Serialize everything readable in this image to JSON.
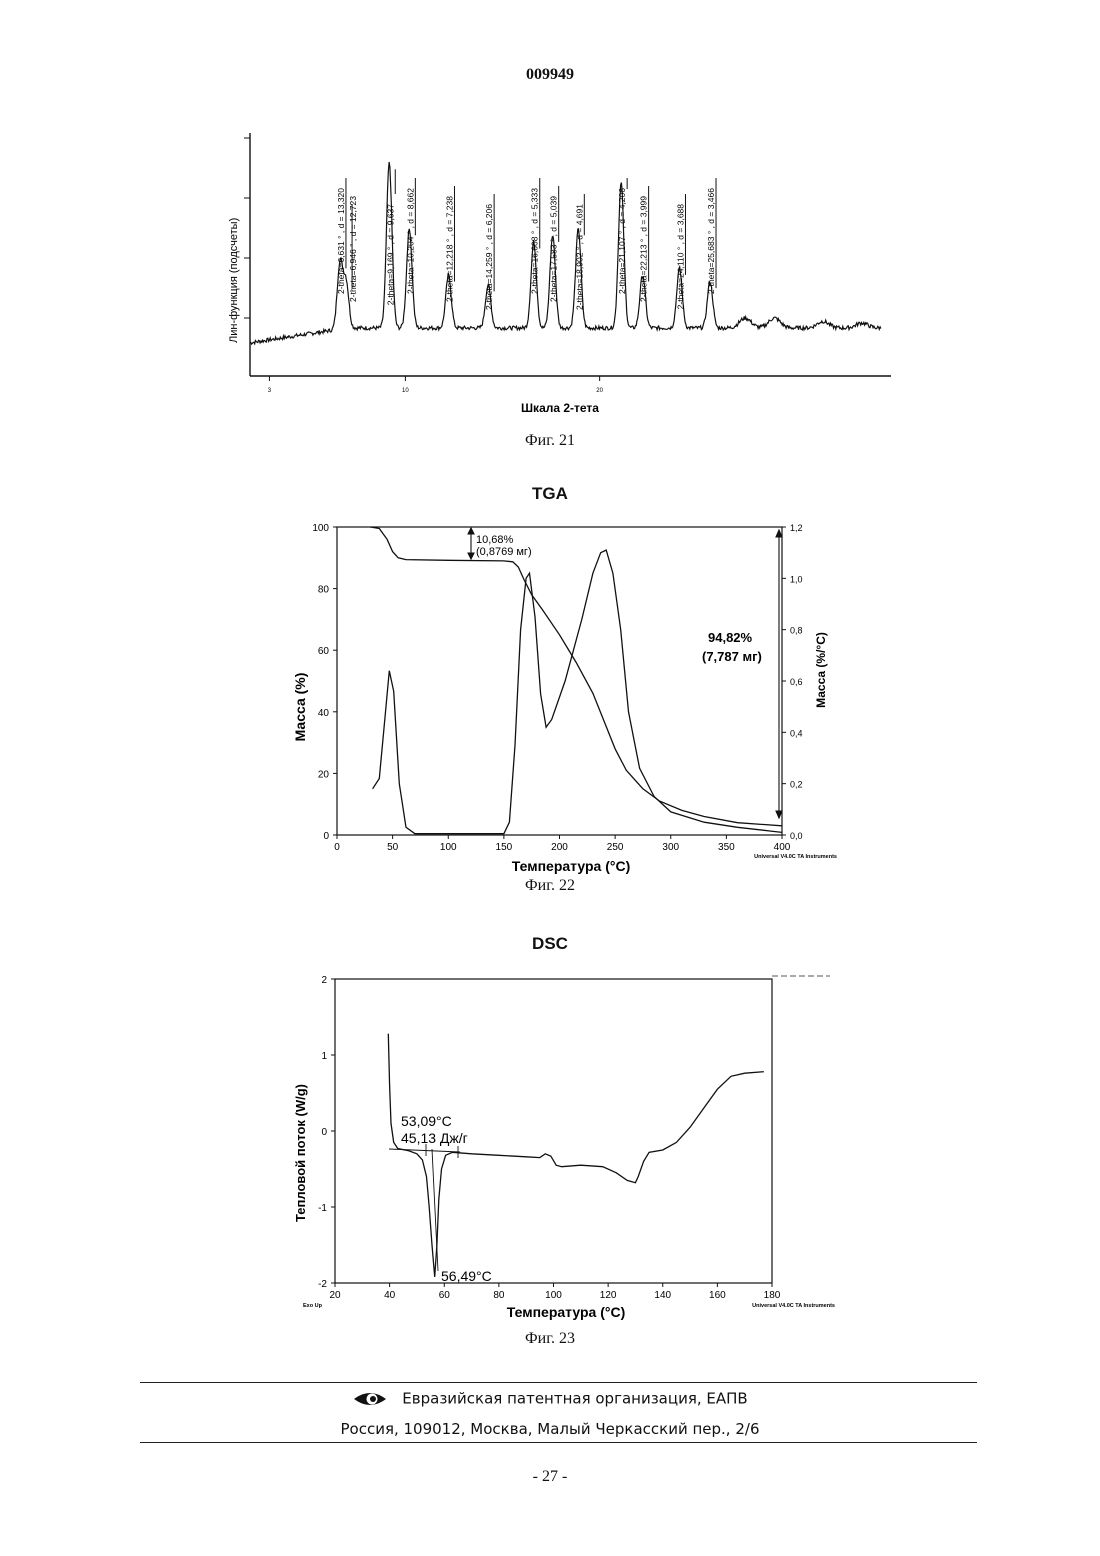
{
  "header": {
    "doc_number": "009949"
  },
  "figures": [
    {
      "caption": "Фиг. 21"
    },
    {
      "caption": "Фиг. 22"
    },
    {
      "caption": "Фиг. 23"
    }
  ],
  "chart_data": [
    {
      "type": "line",
      "title": "",
      "xlabel": "Шкала 2-тета",
      "ylabel": "Лин-функция (подсчеты)",
      "x_tick_labels": [
        "3",
        "10",
        "20"
      ],
      "xlim": [
        2,
        35
      ],
      "annotations": [
        "2-theta=6,631 ° , d = 13,320",
        "2-theta=6,946 ° , d = 12,723",
        "2-theta=9,169 ° , d = 9,637",
        "2-theta=10,204 ° , d = 8,662",
        "2-theta=12,218 ° , d = 7,238",
        "2-theta=14,259 ° , d = 6,206",
        "2-theta=16,608 ° , d = 5,333",
        "2-theta=17,583 ° , d = 5,039",
        "2-theta=18,902 ° , d = 4,691",
        "2-theta=21,107 ° , d = 4,206",
        "2-theta=22,213 ° , d = 3,999",
        "2-theta=24,110 ° , d = 3,688",
        "2-theta=25,683 ° , d = 3,466"
      ],
      "peaks_2theta": [
        6.631,
        6.946,
        9.169,
        10.204,
        12.218,
        14.259,
        16.608,
        17.583,
        18.902,
        21.107,
        22.213,
        24.11,
        25.683
      ],
      "peak_heights": [
        0.2,
        0.14,
        0.5,
        0.3,
        0.16,
        0.13,
        0.26,
        0.28,
        0.3,
        0.44,
        0.16,
        0.18,
        0.14
      ]
    },
    {
      "type": "line",
      "title": "TGA",
      "xlabel": "Температура (°C)",
      "ylabel": "Масса (%)",
      "ylabel_right": "Масса (%/°C)",
      "xlim": [
        0,
        400
      ],
      "ylim": [
        0,
        100
      ],
      "ylim_right": [
        0,
        1.2
      ],
      "x_ticks": [
        "0",
        "50",
        "100",
        "150",
        "200",
        "250",
        "300",
        "350",
        "400"
      ],
      "y_ticks": [
        "0",
        "20",
        "40",
        "60",
        "80",
        "100"
      ],
      "y_ticks_right": [
        "0,0",
        "0,2",
        "0,4",
        "0,6",
        "0,8",
        "1,0",
        "1,2"
      ],
      "footer_note": "Universal V4.0C TA Instruments",
      "annotations": [
        "10,68%",
        "(0,8769 мг)",
        "94,82%",
        "(7,787 мг)"
      ],
      "series": [
        {
          "name": "mass",
          "points": [
            [
              30,
              100
            ],
            [
              38,
              99.5
            ],
            [
              45,
              96
            ],
            [
              50,
              92
            ],
            [
              55,
              90
            ],
            [
              62,
              89.4
            ],
            [
              100,
              89.2
            ],
            [
              150,
              89
            ],
            [
              158,
              88.7
            ],
            [
              163,
              87
            ],
            [
              168,
              83
            ],
            [
              175,
              78
            ],
            [
              185,
              73
            ],
            [
              200,
              65
            ],
            [
              215,
              56
            ],
            [
              230,
              46
            ],
            [
              240,
              37
            ],
            [
              250,
              28
            ],
            [
              260,
              21
            ],
            [
              275,
              15
            ],
            [
              290,
              11
            ],
            [
              310,
              8
            ],
            [
              330,
              6
            ],
            [
              360,
              4
            ],
            [
              400,
              3
            ]
          ]
        },
        {
          "name": "derivative",
          "points": [
            [
              32,
              0.18
            ],
            [
              38,
              0.22
            ],
            [
              43,
              0.45
            ],
            [
              47,
              0.64
            ],
            [
              51,
              0.56
            ],
            [
              56,
              0.2
            ],
            [
              62,
              0.03
            ],
            [
              70,
              0.005
            ],
            [
              150,
              0.005
            ],
            [
              155,
              0.05
            ],
            [
              160,
              0.35
            ],
            [
              165,
              0.8
            ],
            [
              170,
              1.0
            ],
            [
              173,
              1.02
            ],
            [
              178,
              0.85
            ],
            [
              183,
              0.55
            ],
            [
              188,
              0.42
            ],
            [
              193,
              0.45
            ],
            [
              205,
              0.6
            ],
            [
              220,
              0.84
            ],
            [
              230,
              1.02
            ],
            [
              237,
              1.1
            ],
            [
              242,
              1.11
            ],
            [
              248,
              1.02
            ],
            [
              255,
              0.8
            ],
            [
              262,
              0.48
            ],
            [
              272,
              0.26
            ],
            [
              285,
              0.15
            ],
            [
              300,
              0.09
            ],
            [
              330,
              0.05
            ],
            [
              360,
              0.03
            ],
            [
              390,
              0.015
            ],
            [
              400,
              0.01
            ]
          ]
        }
      ]
    },
    {
      "type": "line",
      "title": "DSC",
      "xlabel": "Температура (°C)",
      "ylabel": "Тепловой поток (W/g)",
      "xlim": [
        20,
        180
      ],
      "ylim": [
        -2,
        2
      ],
      "x_ticks": [
        "20",
        "40",
        "60",
        "80",
        "100",
        "120",
        "140",
        "160",
        "180"
      ],
      "y_ticks": [
        "-2",
        "-1",
        "0",
        "1",
        "2"
      ],
      "bottom_left_note": "Exo Up",
      "footer_note": "Universal V4.0C TA Instruments",
      "annotations": [
        "53,09°C",
        "45,13 Дж/г",
        "56,49°C"
      ],
      "series": [
        {
          "name": "heat flow",
          "points": [
            [
              39.5,
              1.28
            ],
            [
              40,
              0.6
            ],
            [
              40.5,
              0.1
            ],
            [
              41.5,
              -0.15
            ],
            [
              43,
              -0.23
            ],
            [
              47,
              -0.26
            ],
            [
              50,
              -0.3
            ],
            [
              52,
              -0.38
            ],
            [
              53.5,
              -0.6
            ],
            [
              54.5,
              -1.0
            ],
            [
              55.5,
              -1.5
            ],
            [
              56.49,
              -1.92
            ],
            [
              57.3,
              -1.5
            ],
            [
              58,
              -0.9
            ],
            [
              59,
              -0.5
            ],
            [
              60.5,
              -0.32
            ],
            [
              63,
              -0.28
            ],
            [
              70,
              -0.3
            ],
            [
              80,
              -0.32
            ],
            [
              90,
              -0.34
            ],
            [
              95,
              -0.35
            ],
            [
              97,
              -0.3
            ],
            [
              99,
              -0.33
            ],
            [
              101,
              -0.45
            ],
            [
              103,
              -0.47
            ],
            [
              110,
              -0.45
            ],
            [
              118,
              -0.47
            ],
            [
              123,
              -0.55
            ],
            [
              127,
              -0.65
            ],
            [
              130,
              -0.68
            ],
            [
              131,
              -0.6
            ],
            [
              133,
              -0.4
            ],
            [
              135,
              -0.28
            ],
            [
              140,
              -0.25
            ],
            [
              145,
              -0.15
            ],
            [
              150,
              0.05
            ],
            [
              155,
              0.3
            ],
            [
              160,
              0.55
            ],
            [
              165,
              0.72
            ],
            [
              170,
              0.76
            ],
            [
              177,
              0.78
            ]
          ]
        }
      ]
    }
  ],
  "footer": {
    "org_line": "Евразийская патентная организация, ЕАПВ",
    "address_line": "Россия, 109012, Москва, Малый Черкасский пер., 2/6",
    "page_number": "- 27 -"
  }
}
